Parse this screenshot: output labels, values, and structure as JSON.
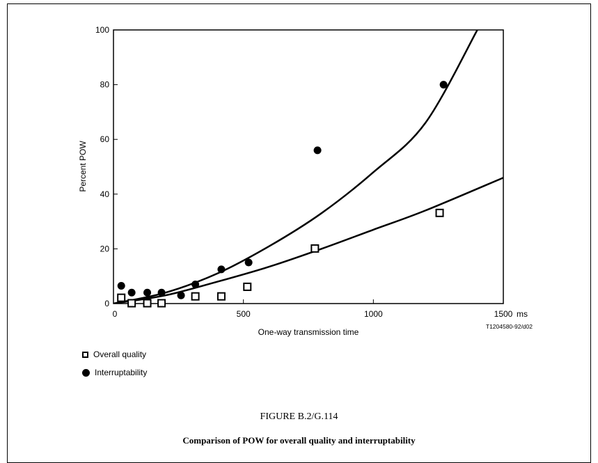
{
  "chart_data": {
    "type": "scatter",
    "xlabel": "One-way transmission time",
    "xunit": "ms",
    "ylabel": "Percent POW",
    "xlim": [
      0,
      1500
    ],
    "ylim": [
      0,
      100
    ],
    "xticks": [
      0,
      500,
      1000,
      1500
    ],
    "yticks": [
      0,
      20,
      40,
      60,
      80,
      100
    ],
    "grid": false,
    "legend_position": "bottom-left",
    "code": "T1204580-92/d02",
    "series": [
      {
        "name": "Overall quality",
        "marker": "open-square",
        "x": [
          30,
          70,
          130,
          185,
          315,
          415,
          515,
          775,
          1255
        ],
        "y": [
          2,
          0,
          0,
          0,
          2.5,
          2.5,
          6,
          20,
          33
        ]
      },
      {
        "name": "Interruptability",
        "marker": "filled-circle",
        "x": [
          30,
          70,
          130,
          185,
          260,
          315,
          415,
          520,
          785,
          1270
        ],
        "y": [
          6.5,
          4,
          4,
          4,
          3,
          7,
          12.5,
          15,
          56,
          80
        ]
      }
    ],
    "fit_curves": [
      {
        "series": "Overall quality",
        "x": [
          0,
          200,
          400,
          600,
          800,
          1000,
          1200,
          1500
        ],
        "y": [
          0,
          3,
          8,
          13.5,
          20,
          27,
          34,
          46
        ]
      },
      {
        "series": "Interruptability",
        "x": [
          0,
          200,
          400,
          600,
          800,
          1000,
          1200,
          1400
        ],
        "y": [
          0,
          4,
          11,
          21,
          33,
          48,
          66,
          100
        ]
      }
    ]
  },
  "figure": {
    "number": "FIGURE B.2/G.114",
    "caption": "Comparison of POW for overall quality and interruptability"
  }
}
